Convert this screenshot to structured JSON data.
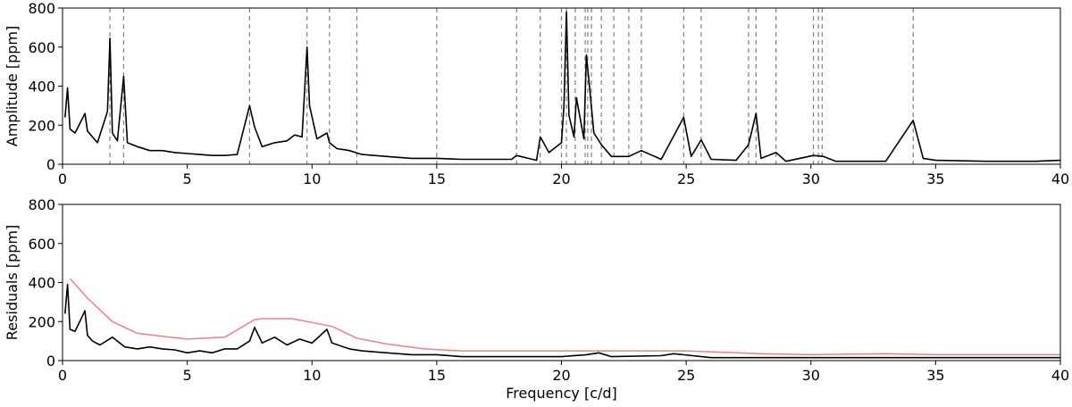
{
  "chart_data": [
    {
      "type": "line",
      "panel": "top",
      "xlabel": "",
      "ylabel": "Amplitude [ppm]",
      "xlim": [
        0,
        40
      ],
      "ylim": [
        0,
        800
      ],
      "xticks": [
        0,
        5,
        10,
        15,
        20,
        25,
        30,
        35,
        40
      ],
      "yticks": [
        0,
        200,
        400,
        600,
        800
      ],
      "grid": false,
      "series": [
        {
          "style": "black solid line (periodogram)",
          "x": [
            0.1,
            0.2,
            0.3,
            0.5,
            0.9,
            1.0,
            1.2,
            1.4,
            1.8,
            1.9,
            2.0,
            2.2,
            2.45,
            2.6,
            3.0,
            3.5,
            4.0,
            4.5,
            5.0,
            5.5,
            6.0,
            6.5,
            7.0,
            7.5,
            7.7,
            8.0,
            8.5,
            9.0,
            9.3,
            9.6,
            9.8,
            9.9,
            10.2,
            10.6,
            10.7,
            11.0,
            11.5,
            12.0,
            13.0,
            14.0,
            15.0,
            16.0,
            17.0,
            18.0,
            18.2,
            19.0,
            19.15,
            19.5,
            20.0,
            20.1,
            20.2,
            20.3,
            20.5,
            20.6,
            20.9,
            21.0,
            21.1,
            21.3,
            21.6,
            22.0,
            22.7,
            23.2,
            24.0,
            24.9,
            25.2,
            25.6,
            26.0,
            27.0,
            27.5,
            27.8,
            28.0,
            28.6,
            29.0,
            30.1,
            30.5,
            31.0,
            32.0,
            33.0,
            34.1,
            34.5,
            35.0,
            37.0,
            39.0,
            40.0
          ],
          "y": [
            240,
            390,
            180,
            160,
            260,
            170,
            140,
            110,
            270,
            645,
            160,
            120,
            450,
            110,
            90,
            70,
            70,
            60,
            55,
            50,
            45,
            45,
            50,
            300,
            190,
            90,
            110,
            120,
            150,
            140,
            600,
            300,
            130,
            160,
            110,
            80,
            70,
            50,
            40,
            30,
            30,
            25,
            25,
            25,
            45,
            20,
            140,
            60,
            110,
            300,
            780,
            250,
            140,
            340,
            130,
            560,
            430,
            160,
            100,
            40,
            40,
            70,
            25,
            240,
            40,
            125,
            25,
            20,
            100,
            260,
            30,
            60,
            15,
            45,
            40,
            15,
            15,
            15,
            225,
            30,
            20,
            15,
            15,
            20
          ]
        }
      ],
      "vlines": [
        1.9,
        2.45,
        7.5,
        9.8,
        10.7,
        11.8,
        15.0,
        18.2,
        19.15,
        20.0,
        20.2,
        20.55,
        20.95,
        21.05,
        21.2,
        21.6,
        22.1,
        22.7,
        23.2,
        24.9,
        25.6,
        27.5,
        27.8,
        28.6,
        30.1,
        30.3,
        30.45,
        34.1
      ],
      "vline_style": "gray dashed"
    },
    {
      "type": "line",
      "panel": "bottom",
      "xlabel": "Frequency [c/d]",
      "ylabel": "Residuals [ppm]",
      "xlim": [
        0,
        40
      ],
      "ylim": [
        0,
        800
      ],
      "xticks": [
        0,
        5,
        10,
        15,
        20,
        25,
        30,
        35,
        40
      ],
      "yticks": [
        0,
        200,
        400,
        600,
        800
      ],
      "grid": false,
      "series": [
        {
          "style": "black solid line (residual periodogram)",
          "x": [
            0.1,
            0.2,
            0.3,
            0.5,
            0.9,
            1.0,
            1.2,
            1.5,
            2.0,
            2.5,
            3.0,
            3.5,
            4.0,
            4.5,
            5.0,
            5.5,
            6.0,
            6.5,
            7.0,
            7.5,
            7.7,
            8.0,
            8.5,
            9.0,
            9.5,
            10.0,
            10.6,
            10.8,
            11.5,
            12.0,
            13.0,
            14.0,
            15.0,
            16.0,
            18.0,
            20.0,
            21.0,
            21.5,
            22.0,
            24.0,
            24.5,
            26.0,
            28.0,
            30.0,
            32.0,
            34.0,
            36.0,
            38.0,
            40.0
          ],
          "y": [
            240,
            390,
            160,
            150,
            255,
            130,
            100,
            80,
            120,
            70,
            60,
            70,
            60,
            55,
            40,
            50,
            40,
            60,
            60,
            100,
            170,
            90,
            120,
            80,
            110,
            90,
            160,
            90,
            60,
            50,
            40,
            30,
            30,
            20,
            20,
            20,
            30,
            40,
            20,
            25,
            35,
            15,
            15,
            15,
            15,
            15,
            15,
            15,
            15
          ]
        },
        {
          "style": "red/salmon line (significance threshold)",
          "x": [
            0.3,
            1.0,
            2.0,
            3.0,
            4.0,
            5.0,
            6.5,
            7.7,
            8.0,
            9.2,
            10.0,
            10.8,
            11.8,
            13.0,
            14.5,
            16.0,
            20.0,
            25.0,
            28.0,
            30.0,
            33.0,
            35.0,
            40.0
          ],
          "y": [
            420,
            320,
            200,
            140,
            125,
            110,
            120,
            210,
            215,
            215,
            195,
            175,
            115,
            85,
            60,
            50,
            50,
            50,
            35,
            30,
            35,
            30,
            30
          ]
        }
      ]
    }
  ]
}
